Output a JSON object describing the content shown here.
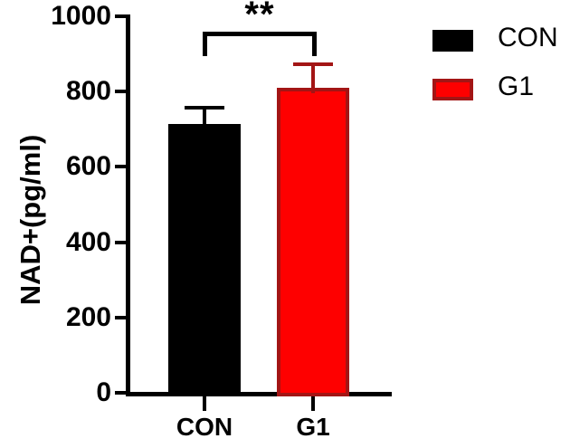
{
  "chart_data": {
    "type": "bar",
    "title": "",
    "ylabel": "NAD+(pg/ml)",
    "xlabel": "",
    "categories": [
      "CON",
      "G1"
    ],
    "series": [
      {
        "name": "NAD+",
        "values": [
          715,
          810
        ],
        "error_sd": [
          42,
          63
        ]
      }
    ],
    "ylim": [
      0,
      1000
    ],
    "yticks": [
      0,
      200,
      400,
      600,
      800,
      1000
    ],
    "grid": false,
    "legend_position": "right",
    "error_bar_style": "sd-upper-only",
    "significance": {
      "text": "**",
      "pair": [
        "CON",
        "G1"
      ]
    }
  },
  "colors": {
    "background": "#ffffff",
    "axis": "#000000",
    "bar_fill": [
      "#000000",
      "#fe0000"
    ],
    "bar_border": [
      "#000000",
      "#a31515"
    ],
    "error_bar": [
      "#000000",
      "#a31515"
    ]
  },
  "legend": {
    "items": [
      {
        "label": "CON",
        "fill": "#000000",
        "border": "#000000"
      },
      {
        "label": "G1",
        "fill": "#fe0000",
        "border": "#a31515"
      }
    ]
  }
}
